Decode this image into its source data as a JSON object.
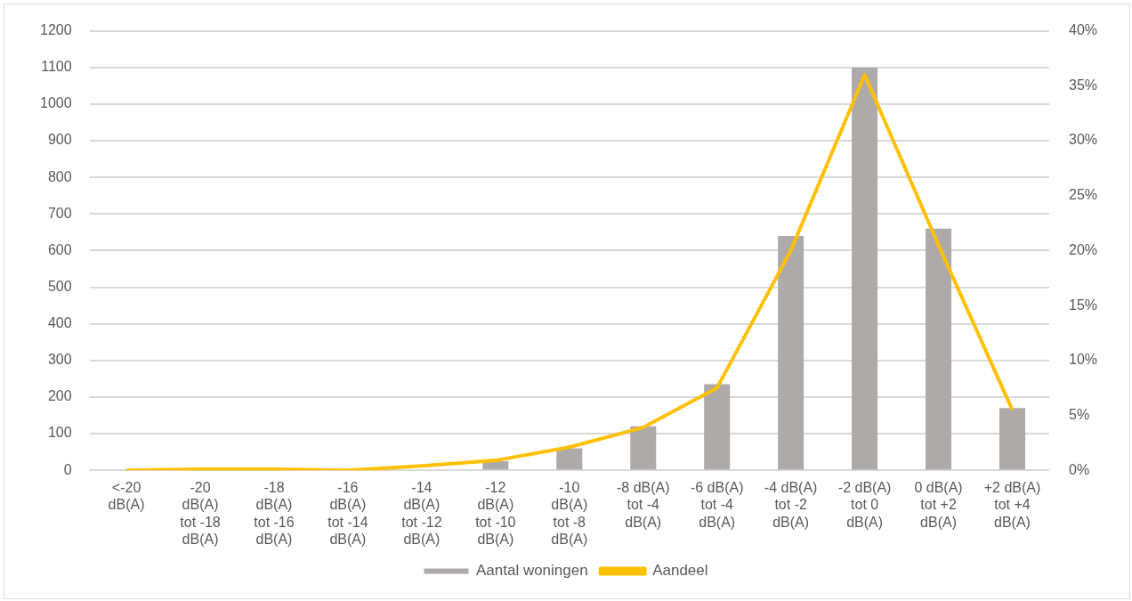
{
  "chart_data": {
    "type": "bar",
    "categories": [
      "<-20 dB(A)",
      "-20 dB(A) tot -18 dB(A)",
      "-18 dB(A) tot -16 dB(A)",
      "-16 dB(A) tot -14 dB(A)",
      "-14 dB(A) tot -12 dB(A)",
      "-12 dB(A) tot -10 dB(A)",
      "-10 dB(A) tot -8 dB(A)",
      "-8 dB(A) tot -4 dB(A)",
      "-6 dB(A) tot -4 dB(A)",
      "-4 dB(A) tot -2 dB(A)",
      "-2 dB(A) tot 0 dB(A)",
      "0 dB(A) tot +2 dB(A)",
      "+2 dB(A) tot +4 dB(A)"
    ],
    "series": [
      {
        "name": "Aantal woningen",
        "color": "#aeaaaa",
        "values": [
          0,
          0,
          0,
          0,
          null,
          25,
          60,
          120,
          235,
          640,
          1100,
          660,
          170
        ]
      },
      {
        "name": "Aandeel",
        "type": "line",
        "axis": "y2",
        "color": "#ffc000",
        "values": [
          0,
          0.1,
          0.1,
          0,
          0.4,
          0.9,
          2.1,
          3.9,
          7.5,
          20,
          36,
          20.5,
          5.5
        ]
      }
    ],
    "ylim": [
      0,
      1200
    ],
    "yticks": [
      0,
      100,
      200,
      300,
      400,
      500,
      600,
      700,
      800,
      900,
      1000,
      1100,
      1200
    ],
    "y2lim": [
      0,
      40
    ],
    "y2ticks": [
      {
        "value": 0,
        "label": "0%"
      },
      {
        "value": 5,
        "label": "5%"
      },
      {
        "value": 10,
        "label": "10%"
      },
      {
        "value": 15,
        "label": "15%"
      },
      {
        "value": 20,
        "label": "20%"
      },
      {
        "value": 25,
        "label": "25%"
      },
      {
        "value": 30,
        "label": "30%"
      },
      {
        "value": 35,
        "label": "35%"
      },
      {
        "value": 40,
        "label": "40%"
      }
    ],
    "grid": "y",
    "legend": "bottom",
    "marker": "none"
  }
}
